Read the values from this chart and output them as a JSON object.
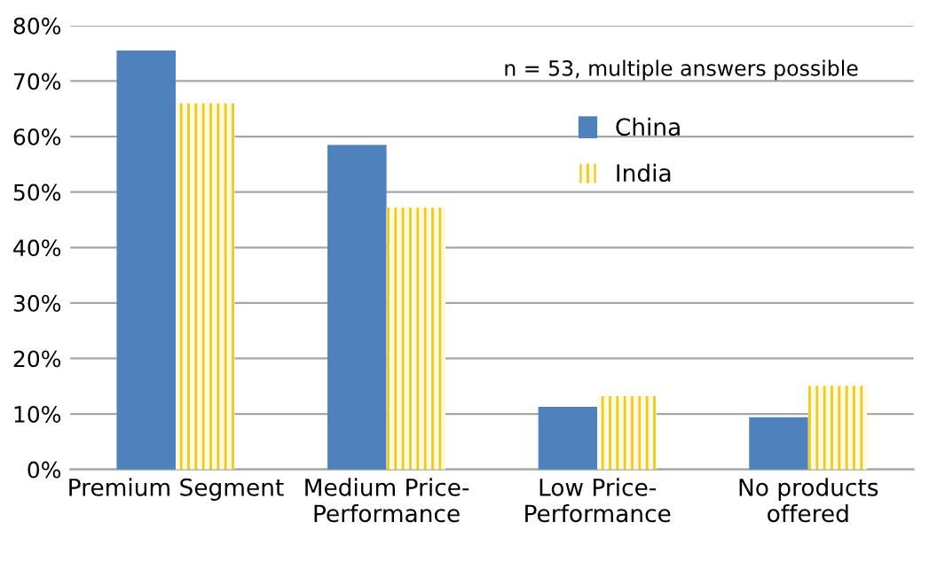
{
  "chart_data": {
    "type": "bar",
    "categories": [
      "Premium Segment",
      "Medium Price-\nPerformance",
      "Low Price-\nPerformance",
      "No products\noffered"
    ],
    "series": [
      {
        "name": "China",
        "color": "#4f81bd",
        "values": [
          75.5,
          58.5,
          11.3,
          9.4
        ]
      },
      {
        "name": "India",
        "color": "#f2c81f",
        "values": [
          66.0,
          47.2,
          13.2,
          15.1
        ]
      }
    ],
    "ylim": [
      0,
      80
    ],
    "yticks": [
      {
        "value": 0,
        "label": "0%"
      },
      {
        "value": 10,
        "label": "10%"
      },
      {
        "value": 20,
        "label": "20%"
      },
      {
        "value": 30,
        "label": "30%"
      },
      {
        "value": 40,
        "label": "40%"
      },
      {
        "value": 50,
        "label": "50%"
      },
      {
        "value": 60,
        "label": "60%"
      },
      {
        "value": 70,
        "label": "70%"
      },
      {
        "value": 80,
        "label": "80%"
      }
    ],
    "annotations": [
      "n = 53, multiple answers possible"
    ],
    "grid": "y",
    "legend": "top right"
  }
}
